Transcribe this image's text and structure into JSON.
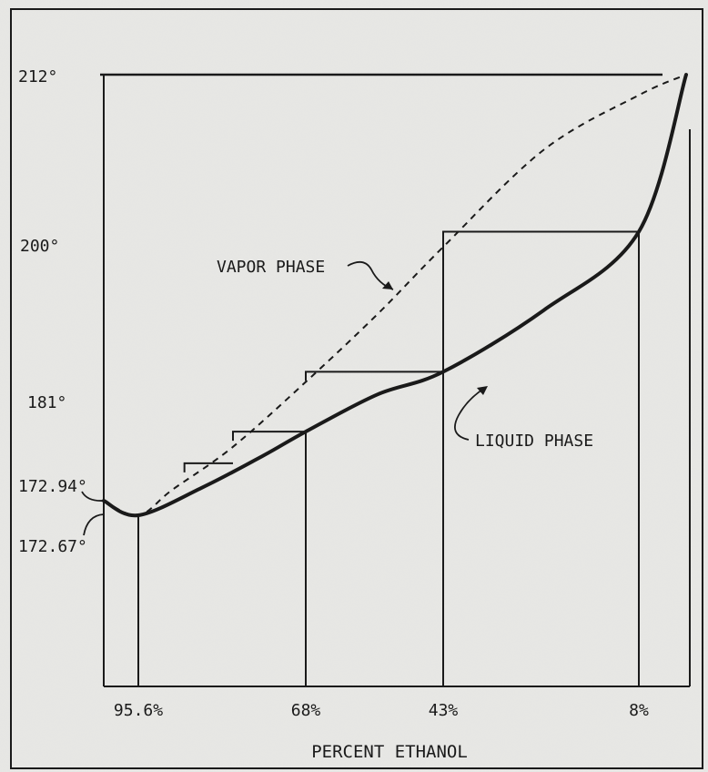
{
  "chart_data": {
    "type": "line",
    "title": "",
    "xlabel": "PERCENT ETHANOL",
    "ylabel": "",
    "x_ticks": [
      "95.6%",
      "68%",
      "43%",
      "8%"
    ],
    "y_ticks": [
      "212°",
      "200°",
      "181°",
      "172.94°",
      "172.67°"
    ],
    "series": [
      {
        "name": "VAPOR PHASE",
        "style": "dashed",
        "points": [
          [
            100,
            172.94
          ],
          [
            95.6,
            172.67
          ],
          [
            90,
            173.8
          ],
          [
            80,
            177.2
          ],
          [
            68,
            183
          ],
          [
            55,
            191
          ],
          [
            43,
            199
          ],
          [
            25,
            206.5
          ],
          [
            8,
            210.5
          ],
          [
            0,
            212
          ]
        ]
      },
      {
        "name": "LIQUID PHASE",
        "style": "solid",
        "points": [
          [
            100,
            172.94
          ],
          [
            95.6,
            172.67
          ],
          [
            85,
            174.0
          ],
          [
            75,
            176.5
          ],
          [
            68,
            178.4
          ],
          [
            55,
            181.5
          ],
          [
            43,
            184.2
          ],
          [
            25,
            191.5
          ],
          [
            8,
            200.5
          ],
          [
            0,
            212
          ]
        ]
      }
    ],
    "steps": [
      {
        "from": 8,
        "to": 43,
        "temp": 200.5
      },
      {
        "from": 43,
        "to": 68,
        "temp": 184.2
      },
      {
        "from": 68,
        "to": 80,
        "temp": 178.4
      },
      {
        "from": 80,
        "to": 88,
        "temp": 175.9
      }
    ],
    "annotations": [
      "VAPOR PHASE",
      "LIQUID PHASE"
    ],
    "colors": {
      "background": "#e6e6e3",
      "ink": "#1a1a1a"
    }
  }
}
